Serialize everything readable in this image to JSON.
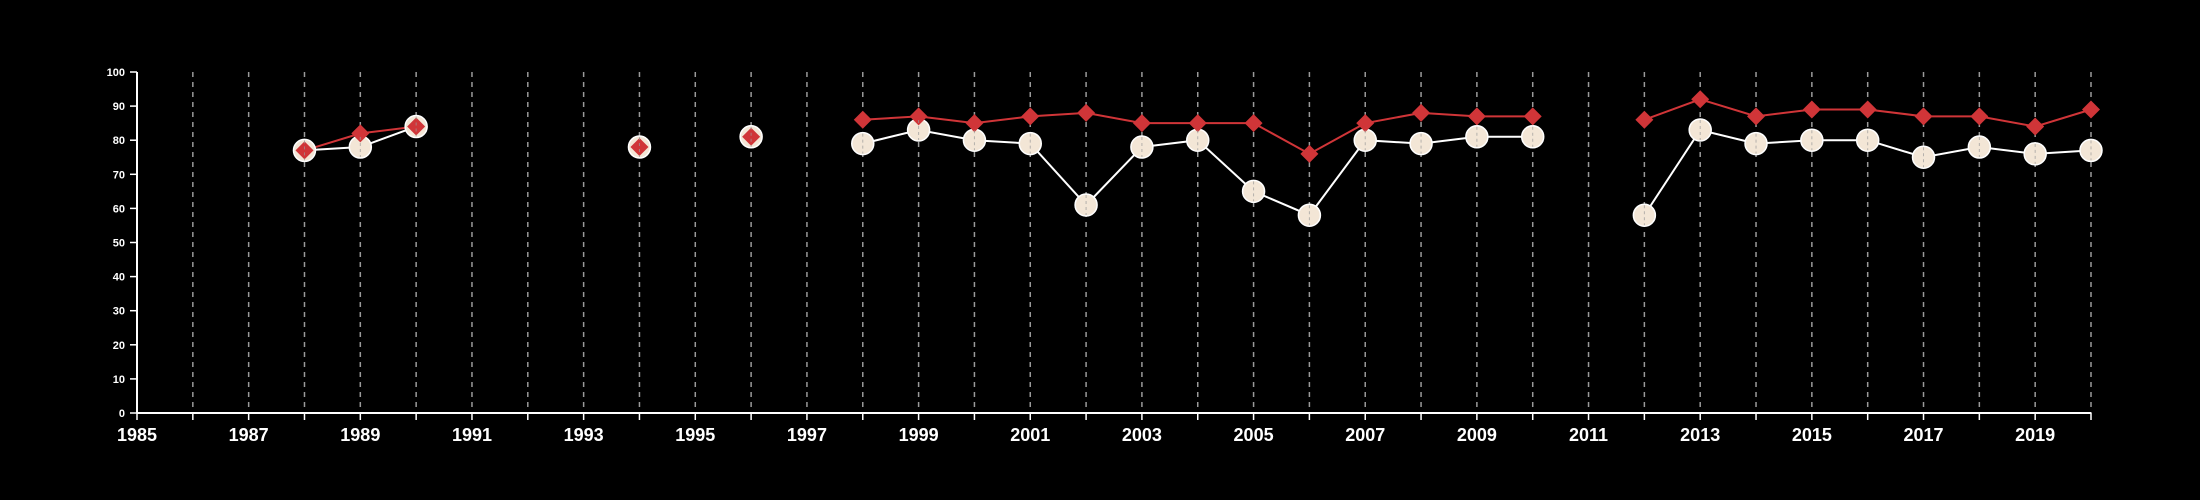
{
  "colors": {
    "background": "#000000",
    "axis": "#ffffff",
    "grid": "#9a9a9a",
    "series_white_line": "#ffffff",
    "series_white_fill": "#f3e6d6",
    "series_red": "#d03538"
  },
  "chart_data": {
    "type": "line",
    "title": "",
    "xlabel": "",
    "ylabel": "",
    "xlim": [
      1985,
      2020
    ],
    "ylim": [
      0,
      100
    ],
    "x_ticks": [
      1985,
      1987,
      1989,
      1991,
      1993,
      1995,
      1997,
      1999,
      2001,
      2003,
      2005,
      2007,
      2009,
      2011,
      2013,
      2015,
      2017,
      2019
    ],
    "x_tick_labels": [
      "1985",
      "1987",
      "1989",
      "1991",
      "1993",
      "1995",
      "1997",
      "1999",
      "2001",
      "2003",
      "2005",
      "2007",
      "2009",
      "2011",
      "2013",
      "2015",
      "2017",
      "2019"
    ],
    "y_ticks": [
      0,
      10,
      20,
      30,
      40,
      50,
      60,
      70,
      80,
      90,
      100
    ],
    "y_tick_labels": [
      "0",
      "10",
      "20",
      "30",
      "40",
      "50",
      "60",
      "70",
      "80",
      "90",
      "100"
    ],
    "grid": "vertical dashed lines at each year",
    "legend": "none",
    "series": [
      {
        "marker": "circle",
        "color": "#f3e6d6",
        "points": [
          {
            "x": 1988,
            "y": 77
          },
          {
            "x": 1989,
            "y": 78
          },
          {
            "x": 1990,
            "y": 84
          },
          {
            "x": 1994,
            "y": 78
          },
          {
            "x": 1996,
            "y": 81
          },
          {
            "x": 1998,
            "y": 79
          },
          {
            "x": 1999,
            "y": 83
          },
          {
            "x": 2000,
            "y": 80
          },
          {
            "x": 2001,
            "y": 79
          },
          {
            "x": 2002,
            "y": 61
          },
          {
            "x": 2003,
            "y": 78
          },
          {
            "x": 2004,
            "y": 80
          },
          {
            "x": 2005,
            "y": 65
          },
          {
            "x": 2006,
            "y": 58
          },
          {
            "x": 2007,
            "y": 80
          },
          {
            "x": 2008,
            "y": 79
          },
          {
            "x": 2009,
            "y": 81
          },
          {
            "x": 2010,
            "y": 81
          },
          {
            "x": 2012,
            "y": 58
          },
          {
            "x": 2013,
            "y": 83
          },
          {
            "x": 2014,
            "y": 79
          },
          {
            "x": 2015,
            "y": 80
          },
          {
            "x": 2016,
            "y": 80
          },
          {
            "x": 2017,
            "y": 75
          },
          {
            "x": 2018,
            "y": 78
          },
          {
            "x": 2019,
            "y": 76
          },
          {
            "x": 2020,
            "y": 77
          }
        ]
      },
      {
        "marker": "diamond",
        "color": "#d03538",
        "points": [
          {
            "x": 1988,
            "y": 77
          },
          {
            "x": 1989,
            "y": 82
          },
          {
            "x": 1990,
            "y": 84
          },
          {
            "x": 1994,
            "y": 78
          },
          {
            "x": 1996,
            "y": 81
          },
          {
            "x": 1998,
            "y": 86
          },
          {
            "x": 1999,
            "y": 87
          },
          {
            "x": 2000,
            "y": 85
          },
          {
            "x": 2001,
            "y": 87
          },
          {
            "x": 2002,
            "y": 88
          },
          {
            "x": 2003,
            "y": 85
          },
          {
            "x": 2004,
            "y": 85
          },
          {
            "x": 2005,
            "y": 85
          },
          {
            "x": 2006,
            "y": 76
          },
          {
            "x": 2007,
            "y": 85
          },
          {
            "x": 2008,
            "y": 88
          },
          {
            "x": 2009,
            "y": 87
          },
          {
            "x": 2010,
            "y": 87
          },
          {
            "x": 2012,
            "y": 86
          },
          {
            "x": 2013,
            "y": 92
          },
          {
            "x": 2014,
            "y": 87
          },
          {
            "x": 2015,
            "y": 89
          },
          {
            "x": 2016,
            "y": 89
          },
          {
            "x": 2017,
            "y": 87
          },
          {
            "x": 2018,
            "y": 87
          },
          {
            "x": 2019,
            "y": 84
          },
          {
            "x": 2020,
            "y": 89
          }
        ]
      }
    ]
  }
}
